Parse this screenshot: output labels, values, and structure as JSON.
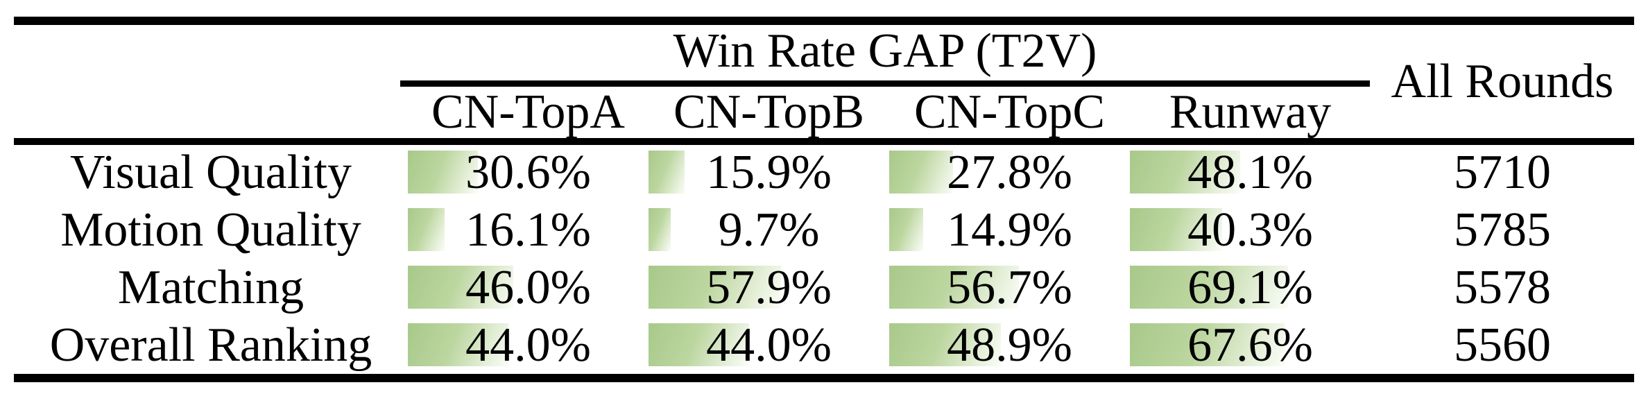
{
  "table": {
    "group_header": "Win Rate GAP (T2V)",
    "all_rounds_header": "All Rounds",
    "columns": [
      "CN-TopA",
      "CN-TopB",
      "CN-TopC",
      "Runway"
    ],
    "rows": [
      {
        "label": "Visual Quality",
        "cells": [
          {
            "display": "30.6%",
            "pct": 30.6
          },
          {
            "display": "15.9%",
            "pct": 15.9
          },
          {
            "display": "27.8%",
            "pct": 27.8
          },
          {
            "display": "48.1%",
            "pct": 48.1
          }
        ],
        "all_rounds": "5710"
      },
      {
        "label": "Motion Quality",
        "cells": [
          {
            "display": "16.1%",
            "pct": 16.1
          },
          {
            "display": "9.7%",
            "pct": 9.7
          },
          {
            "display": "14.9%",
            "pct": 14.9
          },
          {
            "display": "40.3%",
            "pct": 40.3
          }
        ],
        "all_rounds": "5785"
      },
      {
        "label": "Matching",
        "cells": [
          {
            "display": "46.0%",
            "pct": 46.0
          },
          {
            "display": "57.9%",
            "pct": 57.9
          },
          {
            "display": "56.7%",
            "pct": 56.7
          },
          {
            "display": "69.1%",
            "pct": 69.1
          }
        ],
        "all_rounds": "5578"
      },
      {
        "label": "Overall Ranking",
        "cells": [
          {
            "display": "44.0%",
            "pct": 44.0
          },
          {
            "display": "44.0%",
            "pct": 44.0
          },
          {
            "display": "48.9%",
            "pct": 48.9
          },
          {
            "display": "67.6%",
            "pct": 67.6
          }
        ],
        "all_rounds": "5560"
      }
    ],
    "colors": {
      "bar_gradient_start": "#a8c98a",
      "bar_gradient_end": "#fbfdf8",
      "rule": "#000000",
      "text": "#000000",
      "background": "#ffffff"
    }
  },
  "chart_data": {
    "type": "table",
    "title": "Win Rate GAP (T2V)",
    "columns": [
      "CN-TopA",
      "CN-TopB",
      "CN-TopC",
      "Runway",
      "All Rounds"
    ],
    "row_labels": [
      "Visual Quality",
      "Motion Quality",
      "Matching",
      "Overall Ranking"
    ],
    "series": [
      {
        "name": "Visual Quality",
        "win_rate_gap_pct": [
          30.6,
          15.9,
          27.8,
          48.1
        ],
        "all_rounds": 5710
      },
      {
        "name": "Motion Quality",
        "win_rate_gap_pct": [
          16.1,
          9.7,
          14.9,
          40.3
        ],
        "all_rounds": 5785
      },
      {
        "name": "Matching",
        "win_rate_gap_pct": [
          46.0,
          57.9,
          56.7,
          69.1
        ],
        "all_rounds": 5578
      },
      {
        "name": "Overall Ranking",
        "win_rate_gap_pct": [
          44.0,
          44.0,
          48.9,
          67.6
        ],
        "all_rounds": 5560
      }
    ],
    "bar_scale_note": "in-cell data bars proportional to percentage, full scale = 100%"
  }
}
